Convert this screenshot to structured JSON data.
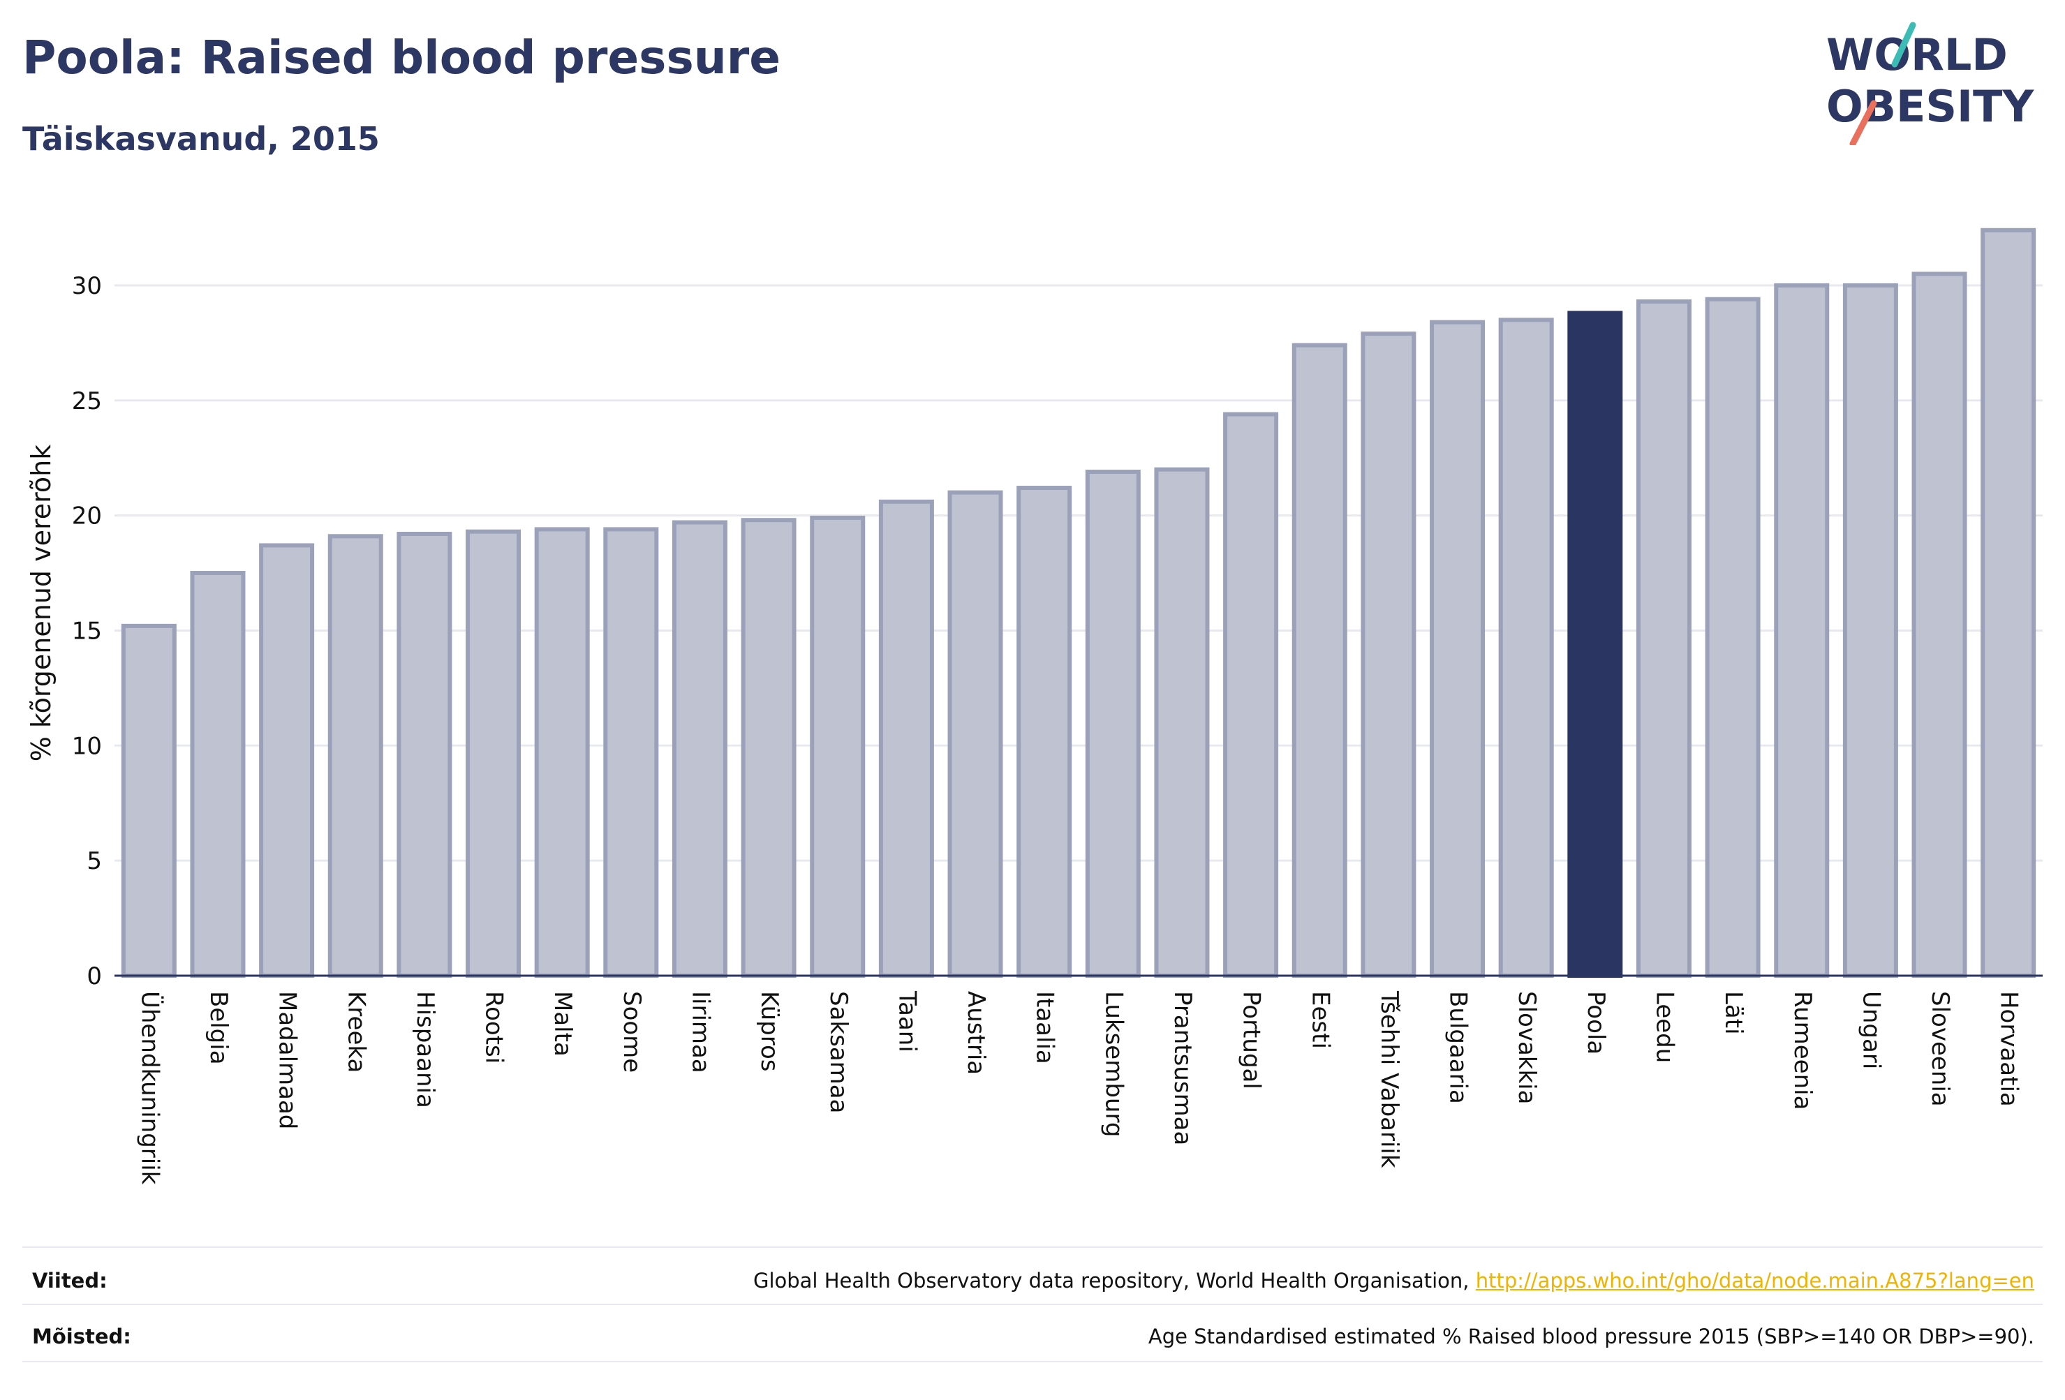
{
  "header": {
    "title": "Poola: Raised blood pressure",
    "subtitle": "Täiskasvanud, 2015"
  },
  "logo": {
    "line1": "WORLD",
    "line2": "OBESITY",
    "colors": {
      "text": "#2d3763",
      "slash_teal": "#3cbcb4",
      "slash_coral": "#e8705c"
    }
  },
  "colors": {
    "bar_fill": "#bfc3d1",
    "bar_stroke": "#9aa1b9",
    "highlight": "#2b3561",
    "grid": "#e8e9ef",
    "axis": "#2b3561"
  },
  "chart_data": {
    "type": "bar",
    "title": "Poola: Raised blood pressure",
    "subtitle": "Täiskasvanud, 2015",
    "xlabel": "",
    "ylabel": "% kõrgenenud vererõhk",
    "ylim": [
      0,
      33
    ],
    "yticks": [
      0,
      5,
      10,
      15,
      20,
      25,
      30
    ],
    "grid": true,
    "legend": "none",
    "highlight": "Poola",
    "categories": [
      "Ühendkuningriik",
      "Belgia",
      "Madalmaad",
      "Kreeka",
      "Hispaania",
      "Rootsi",
      "Malta",
      "Soome",
      "Iirimaa",
      "Küpros",
      "Saksamaa",
      "Taani",
      "Austria",
      "Itaalia",
      "Luksemburg",
      "Prantsusmaa",
      "Portugal",
      "Eesti",
      "Tšehhi Vabariik",
      "Bulgaaria",
      "Slovakkia",
      "Poola",
      "Leedu",
      "Läti",
      "Rumeenia",
      "Ungari",
      "Sloveenia",
      "Horvaatia"
    ],
    "values": [
      15.2,
      17.5,
      18.7,
      19.1,
      19.2,
      19.3,
      19.4,
      19.4,
      19.7,
      19.8,
      19.9,
      20.6,
      21.0,
      21.2,
      21.9,
      22.0,
      24.4,
      27.4,
      27.9,
      28.4,
      28.5,
      28.8,
      29.3,
      29.4,
      30.0,
      30.0,
      30.5,
      32.4
    ]
  },
  "footer": {
    "sources_label": "Viited:",
    "sources_text": "Global Health Observatory data repository, World Health Organisation, ",
    "sources_link": "http://apps.who.int/gho/data/node.main.A875?lang=en",
    "definitions_label": "Mõisted:",
    "definitions_text": "Age Standardised estimated % Raised blood pressure 2015 (SBP>=140 OR DBP>=90)."
  }
}
